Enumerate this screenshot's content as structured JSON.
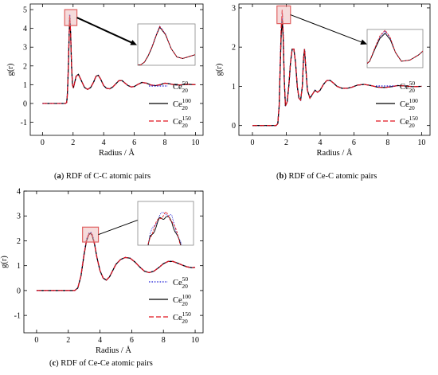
{
  "figure": {
    "subpanels": [
      {
        "letter": "a",
        "caption": "RDF of C-C atomic pairs"
      },
      {
        "letter": "b",
        "caption": "RDF of Ce-C atomic pairs"
      },
      {
        "letter": "c",
        "caption": "RDF of Ce-Ce atomic pairs"
      }
    ]
  },
  "colors": {
    "ce50": "#1f1fd6",
    "ce100": "#000000",
    "ce150": "#e0141e",
    "highlight": "#e06060"
  },
  "chart_data": [
    {
      "type": "line",
      "panel": "a",
      "xlabel": "Radius / Å",
      "ylabel": "g(r)",
      "xlim": [
        -0.8,
        10.5
      ],
      "ylim": [
        -1.7,
        5.3
      ],
      "xticks": [
        "0",
        "2",
        "4",
        "6",
        "8",
        "10"
      ],
      "yticks": [
        "-1",
        "0",
        "1",
        "2",
        "3",
        "4",
        "5"
      ],
      "legend_position": "lower-right",
      "inset": {
        "x_range": [
          1.55,
          2.15
        ],
        "y_range": [
          0,
          5.0
        ]
      },
      "zoom_box": {
        "x_range": [
          1.45,
          2.25
        ],
        "y_range": [
          4.15,
          5.0
        ]
      },
      "series": [
        {
          "label": "Ce",
          "sub": "20",
          "sup": "50",
          "style": "dotted",
          "color": "#1f1fd6",
          "x": [
            0,
            1.0,
            1.5,
            1.58,
            1.62,
            1.66,
            1.7,
            1.74,
            1.78,
            1.84,
            1.9,
            1.96,
            2.02,
            2.1,
            2.2,
            2.35,
            2.55,
            2.75,
            2.95,
            3.15,
            3.35,
            3.5,
            3.65,
            3.8,
            4.0,
            4.2,
            4.4,
            4.6,
            4.8,
            5.0,
            5.2,
            5.4,
            5.6,
            5.8,
            6.0,
            6.2,
            6.5,
            6.8,
            7.1,
            7.4,
            7.7,
            8.0,
            8.3,
            8.6,
            8.9,
            9.2,
            9.5,
            10.0
          ],
          "y": [
            0,
            0,
            0,
            0.05,
            0.4,
            1.2,
            2.3,
            3.6,
            4.75,
            3.8,
            2.0,
            1.0,
            0.82,
            1.1,
            1.45,
            1.55,
            1.2,
            0.85,
            0.75,
            0.85,
            1.15,
            1.45,
            1.5,
            1.3,
            0.95,
            0.8,
            0.78,
            0.88,
            1.05,
            1.22,
            1.22,
            1.08,
            0.95,
            0.88,
            0.9,
            1.0,
            1.12,
            1.08,
            0.98,
            0.95,
            1.0,
            1.08,
            1.05,
            1.0,
            0.98,
            1.0,
            1.02,
            1.0
          ]
        },
        {
          "label": "Ce",
          "sub": "20",
          "sup": "100",
          "style": "solid",
          "color": "#000000",
          "x": [
            0,
            1.0,
            1.5,
            1.58,
            1.62,
            1.66,
            1.7,
            1.74,
            1.78,
            1.84,
            1.9,
            1.96,
            2.02,
            2.1,
            2.2,
            2.35,
            2.55,
            2.75,
            2.95,
            3.15,
            3.35,
            3.5,
            3.65,
            3.8,
            4.0,
            4.2,
            4.4,
            4.6,
            4.8,
            5.0,
            5.2,
            5.4,
            5.6,
            5.8,
            6.0,
            6.2,
            6.5,
            6.8,
            7.1,
            7.4,
            7.7,
            8.0,
            8.3,
            8.6,
            8.9,
            9.2,
            9.5,
            10.0
          ],
          "y": [
            0,
            0,
            0,
            0.05,
            0.38,
            1.15,
            2.2,
            3.5,
            4.6,
            3.7,
            2.0,
            1.0,
            0.82,
            1.1,
            1.45,
            1.55,
            1.2,
            0.85,
            0.75,
            0.85,
            1.15,
            1.45,
            1.5,
            1.3,
            0.95,
            0.8,
            0.78,
            0.88,
            1.05,
            1.22,
            1.22,
            1.08,
            0.95,
            0.88,
            0.9,
            1.0,
            1.12,
            1.08,
            0.98,
            0.95,
            1.0,
            1.08,
            1.05,
            1.0,
            0.98,
            1.0,
            1.02,
            1.0
          ]
        },
        {
          "label": "Ce",
          "sub": "20",
          "sup": "150",
          "style": "dashed",
          "color": "#e0141e",
          "x": [
            0,
            1.0,
            1.5,
            1.58,
            1.62,
            1.66,
            1.7,
            1.74,
            1.78,
            1.84,
            1.9,
            1.96,
            2.02,
            2.1,
            2.2,
            2.35,
            2.55,
            2.75,
            2.95,
            3.15,
            3.35,
            3.5,
            3.65,
            3.8,
            4.0,
            4.2,
            4.4,
            4.6,
            4.8,
            5.0,
            5.2,
            5.4,
            5.6,
            5.8,
            6.0,
            6.2,
            6.5,
            6.8,
            7.1,
            7.4,
            7.7,
            8.0,
            8.3,
            8.6,
            8.9,
            9.2,
            9.5,
            10.0
          ],
          "y": [
            0,
            0,
            0,
            0.05,
            0.4,
            1.2,
            2.25,
            3.55,
            4.68,
            3.75,
            2.0,
            1.0,
            0.82,
            1.1,
            1.45,
            1.55,
            1.2,
            0.85,
            0.75,
            0.85,
            1.15,
            1.45,
            1.5,
            1.3,
            0.95,
            0.8,
            0.78,
            0.88,
            1.05,
            1.22,
            1.22,
            1.08,
            0.95,
            0.88,
            0.9,
            1.0,
            1.12,
            1.08,
            0.98,
            0.95,
            1.0,
            1.08,
            1.05,
            1.0,
            0.98,
            1.0,
            1.02,
            1.0
          ]
        }
      ]
    },
    {
      "type": "line",
      "panel": "b",
      "xlabel": "Radius / Å",
      "ylabel": "g(r)",
      "xlim": [
        -0.8,
        10.5
      ],
      "ylim": [
        -0.25,
        3.1
      ],
      "xticks": [
        "0",
        "2",
        "4",
        "6",
        "8",
        "10"
      ],
      "yticks": [
        "0",
        "1",
        "2",
        "3"
      ],
      "legend_position": "lower-right",
      "inset": {
        "x_range": [
          1.55,
          2.2
        ],
        "y_range": [
          0,
          3.0
        ]
      },
      "zoom_box": {
        "x_range": [
          1.45,
          2.25
        ],
        "y_range": [
          2.6,
          3.05
        ]
      },
      "series": [
        {
          "label": "Ce",
          "sub": "20",
          "sup": "50",
          "style": "dotted",
          "color": "#1f1fd6",
          "x": [
            0,
            1.0,
            1.4,
            1.5,
            1.58,
            1.64,
            1.7,
            1.76,
            1.82,
            1.88,
            1.95,
            2.05,
            2.15,
            2.25,
            2.35,
            2.45,
            2.55,
            2.65,
            2.75,
            2.85,
            2.95,
            3.02,
            3.08,
            3.15,
            3.25,
            3.4,
            3.55,
            3.7,
            3.85,
            4.0,
            4.2,
            4.4,
            4.6,
            4.8,
            5.0,
            5.3,
            5.6,
            5.9,
            6.2,
            6.6,
            7.0,
            7.4,
            7.8,
            8.2,
            8.6,
            9.0,
            9.5,
            10.0
          ],
          "y": [
            0,
            0,
            0,
            0.05,
            0.5,
            1.5,
            2.4,
            2.85,
            2.3,
            1.2,
            0.5,
            0.6,
            1.0,
            1.6,
            1.95,
            1.95,
            1.6,
            1.0,
            0.7,
            0.65,
            1.0,
            1.7,
            1.95,
            1.5,
            0.9,
            0.7,
            0.8,
            0.9,
            0.85,
            0.9,
            1.05,
            1.15,
            1.15,
            1.08,
            1.0,
            0.95,
            0.95,
            0.98,
            1.03,
            1.05,
            1.02,
            0.98,
            0.97,
            0.99,
            1.02,
            1.01,
            0.99,
            1.0
          ]
        },
        {
          "label": "Ce",
          "sub": "20",
          "sup": "100",
          "style": "solid",
          "color": "#000000",
          "x": [
            0,
            1.0,
            1.4,
            1.5,
            1.58,
            1.64,
            1.7,
            1.76,
            1.82,
            1.88,
            1.95,
            2.05,
            2.15,
            2.25,
            2.35,
            2.45,
            2.55,
            2.65,
            2.75,
            2.85,
            2.95,
            3.02,
            3.08,
            3.15,
            3.25,
            3.4,
            3.55,
            3.7,
            3.85,
            4.0,
            4.2,
            4.4,
            4.6,
            4.8,
            5.0,
            5.3,
            5.6,
            5.9,
            6.2,
            6.6,
            7.0,
            7.4,
            7.8,
            8.2,
            8.6,
            9.0,
            9.5,
            10.0
          ],
          "y": [
            0,
            0,
            0,
            0.05,
            0.5,
            1.45,
            2.3,
            2.7,
            2.2,
            1.2,
            0.5,
            0.6,
            1.0,
            1.6,
            1.95,
            1.95,
            1.6,
            1.0,
            0.7,
            0.65,
            1.0,
            1.7,
            1.95,
            1.5,
            0.9,
            0.7,
            0.8,
            0.9,
            0.85,
            0.9,
            1.05,
            1.15,
            1.15,
            1.08,
            1.0,
            0.95,
            0.95,
            0.98,
            1.03,
            1.05,
            1.02,
            0.98,
            0.97,
            0.99,
            1.02,
            1.01,
            0.99,
            1.0
          ]
        },
        {
          "label": "Ce",
          "sub": "20",
          "sup": "150",
          "style": "dashed",
          "color": "#e0141e",
          "x": [
            0,
            1.0,
            1.4,
            1.5,
            1.58,
            1.64,
            1.7,
            1.76,
            1.82,
            1.88,
            1.95,
            2.05,
            2.15,
            2.25,
            2.35,
            2.45,
            2.55,
            2.65,
            2.75,
            2.85,
            2.95,
            3.02,
            3.08,
            3.15,
            3.25,
            3.4,
            3.55,
            3.7,
            3.85,
            4.0,
            4.2,
            4.4,
            4.6,
            4.8,
            5.0,
            5.3,
            5.6,
            5.9,
            6.2,
            6.6,
            7.0,
            7.4,
            7.8,
            8.2,
            8.6,
            9.0,
            9.5,
            10.0
          ],
          "y": [
            0,
            0,
            0,
            0.05,
            0.52,
            1.55,
            2.5,
            2.95,
            2.35,
            1.2,
            0.5,
            0.6,
            1.0,
            1.6,
            1.95,
            1.95,
            1.6,
            1.0,
            0.7,
            0.65,
            1.0,
            1.7,
            1.95,
            1.5,
            0.9,
            0.7,
            0.8,
            0.9,
            0.85,
            0.9,
            1.05,
            1.15,
            1.15,
            1.08,
            1.0,
            0.95,
            0.95,
            0.98,
            1.03,
            1.05,
            1.02,
            0.98,
            0.97,
            0.99,
            1.02,
            1.01,
            0.99,
            1.0
          ]
        }
      ]
    },
    {
      "type": "line",
      "panel": "c",
      "xlabel": "Radius / Å",
      "ylabel": "g(r)",
      "xlim": [
        -0.8,
        10.5
      ],
      "ylim": [
        -1.7,
        4.0
      ],
      "xticks": [
        "0",
        "2",
        "4",
        "6",
        "8",
        "10"
      ],
      "yticks": [
        "-1",
        "0",
        "1",
        "2",
        "3",
        "4"
      ],
      "legend_position": "lower-right",
      "inset": {
        "x_range": [
          2.95,
          3.85
        ],
        "y_range": [
          1.9,
          2.5
        ]
      },
      "zoom_box": {
        "x_range": [
          2.9,
          3.9
        ],
        "y_range": [
          1.95,
          2.55
        ]
      },
      "series": [
        {
          "label": "Ce",
          "sub": "20",
          "sup": "50",
          "style": "dotted",
          "color": "#1f1fd6",
          "x": [
            0,
            1.0,
            2.0,
            2.4,
            2.6,
            2.8,
            3.0,
            3.15,
            3.3,
            3.4,
            3.5,
            3.65,
            3.8,
            4.0,
            4.2,
            4.4,
            4.6,
            4.8,
            5.0,
            5.3,
            5.6,
            5.9,
            6.2,
            6.5,
            6.8,
            7.1,
            7.4,
            7.7,
            8.0,
            8.3,
            8.6,
            8.9,
            9.2,
            9.5,
            9.8,
            10.0
          ],
          "y": [
            0,
            0,
            0,
            0.0,
            0.1,
            0.6,
            1.5,
            2.05,
            2.3,
            2.35,
            2.28,
            1.9,
            1.35,
            0.8,
            0.5,
            0.42,
            0.55,
            0.8,
            1.05,
            1.25,
            1.33,
            1.3,
            1.15,
            0.95,
            0.78,
            0.72,
            0.78,
            0.92,
            1.08,
            1.17,
            1.17,
            1.1,
            1.02,
            0.95,
            0.92,
            0.93
          ]
        },
        {
          "label": "Ce",
          "sub": "20",
          "sup": "100",
          "style": "solid",
          "color": "#000000",
          "x": [
            0,
            1.0,
            2.0,
            2.4,
            2.6,
            2.8,
            3.0,
            3.15,
            3.3,
            3.4,
            3.5,
            3.65,
            3.8,
            4.0,
            4.2,
            4.4,
            4.6,
            4.8,
            5.0,
            5.3,
            5.6,
            5.9,
            6.2,
            6.5,
            6.8,
            7.1,
            7.4,
            7.7,
            8.0,
            8.3,
            8.6,
            8.9,
            9.2,
            9.5,
            9.8,
            10.0
          ],
          "y": [
            0,
            0,
            0,
            0.0,
            0.1,
            0.58,
            1.45,
            2.0,
            2.25,
            2.3,
            2.22,
            1.88,
            1.35,
            0.8,
            0.5,
            0.42,
            0.55,
            0.8,
            1.05,
            1.25,
            1.33,
            1.3,
            1.15,
            0.95,
            0.78,
            0.72,
            0.78,
            0.92,
            1.08,
            1.17,
            1.17,
            1.1,
            1.02,
            0.95,
            0.92,
            0.93
          ]
        },
        {
          "label": "Ce",
          "sub": "20",
          "sup": "150",
          "style": "dashed",
          "color": "#e0141e",
          "x": [
            0,
            1.0,
            2.0,
            2.4,
            2.6,
            2.8,
            3.0,
            3.15,
            3.3,
            3.4,
            3.5,
            3.65,
            3.8,
            4.0,
            4.2,
            4.4,
            4.6,
            4.8,
            5.0,
            5.3,
            5.6,
            5.9,
            6.2,
            6.5,
            6.8,
            7.1,
            7.4,
            7.7,
            8.0,
            8.3,
            8.6,
            8.9,
            9.2,
            9.5,
            9.8,
            10.0
          ],
          "y": [
            0,
            0,
            0,
            0.0,
            0.1,
            0.6,
            1.48,
            2.02,
            2.28,
            2.33,
            2.25,
            1.9,
            1.35,
            0.8,
            0.5,
            0.42,
            0.55,
            0.8,
            1.05,
            1.25,
            1.33,
            1.3,
            1.15,
            0.95,
            0.78,
            0.72,
            0.78,
            0.92,
            1.08,
            1.17,
            1.17,
            1.1,
            1.02,
            0.95,
            0.92,
            0.93
          ]
        }
      ]
    }
  ]
}
